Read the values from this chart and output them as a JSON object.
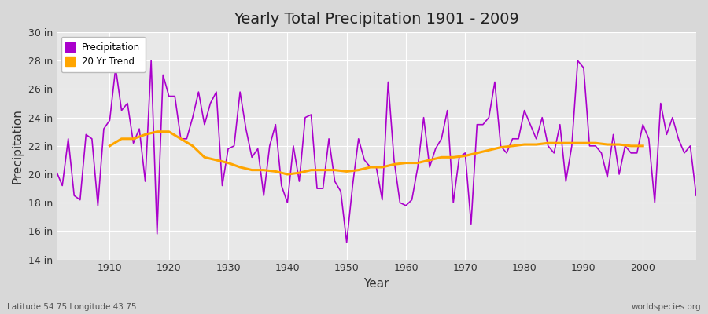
{
  "title": "Yearly Total Precipitation 1901 - 2009",
  "xlabel": "Year",
  "ylabel": "Precipitation",
  "left_label": "Latitude 54.75 Longitude 43.75",
  "right_label": "worldspecies.org",
  "years": [
    1901,
    1902,
    1903,
    1904,
    1905,
    1906,
    1907,
    1908,
    1909,
    1910,
    1911,
    1912,
    1913,
    1914,
    1915,
    1916,
    1917,
    1918,
    1919,
    1920,
    1921,
    1922,
    1923,
    1924,
    1925,
    1926,
    1927,
    1928,
    1929,
    1930,
    1931,
    1932,
    1933,
    1934,
    1935,
    1936,
    1937,
    1938,
    1939,
    1940,
    1941,
    1942,
    1943,
    1944,
    1945,
    1946,
    1947,
    1948,
    1949,
    1950,
    1951,
    1952,
    1953,
    1954,
    1955,
    1956,
    1957,
    1958,
    1959,
    1960,
    1961,
    1962,
    1963,
    1964,
    1965,
    1966,
    1967,
    1968,
    1969,
    1970,
    1971,
    1972,
    1973,
    1974,
    1975,
    1976,
    1977,
    1978,
    1979,
    1980,
    1981,
    1982,
    1983,
    1984,
    1985,
    1986,
    1987,
    1988,
    1989,
    1990,
    1991,
    1992,
    1993,
    1994,
    1995,
    1996,
    1997,
    1998,
    1999,
    2000,
    2001,
    2002,
    2003,
    2004,
    2005,
    2006,
    2007,
    2008,
    2009
  ],
  "precip": [
    20.2,
    19.2,
    22.5,
    18.5,
    18.2,
    22.8,
    22.5,
    17.8,
    23.2,
    23.8,
    27.5,
    24.5,
    25.0,
    22.2,
    23.2,
    19.5,
    28.0,
    15.8,
    27.0,
    25.5,
    25.5,
    22.5,
    22.5,
    24.0,
    25.8,
    23.5,
    25.0,
    25.8,
    19.2,
    21.8,
    22.0,
    25.8,
    23.2,
    21.2,
    21.8,
    18.5,
    22.0,
    23.5,
    19.2,
    18.0,
    22.0,
    19.5,
    24.0,
    24.2,
    19.0,
    19.0,
    22.5,
    19.5,
    18.8,
    15.2,
    19.2,
    22.5,
    21.0,
    20.5,
    20.5,
    18.2,
    26.5,
    21.0,
    18.0,
    17.8,
    18.2,
    20.5,
    24.0,
    20.5,
    21.8,
    22.5,
    24.5,
    18.0,
    21.2,
    21.5,
    16.5,
    23.5,
    23.5,
    24.0,
    26.5,
    22.0,
    21.5,
    22.5,
    22.5,
    24.5,
    23.5,
    22.5,
    24.0,
    22.0,
    21.5,
    23.5,
    19.5,
    22.0,
    28.0,
    27.5,
    22.0,
    22.0,
    21.5,
    19.8,
    22.8,
    20.0,
    22.0,
    21.5,
    21.5,
    23.5,
    22.5,
    18.0,
    25.0,
    22.8,
    24.0,
    22.5,
    21.5,
    22.0,
    18.5
  ],
  "trend_years": [
    1910,
    1912,
    1914,
    1916,
    1918,
    1920,
    1922,
    1924,
    1926,
    1928,
    1930,
    1932,
    1934,
    1936,
    1938,
    1940,
    1942,
    1944,
    1946,
    1948,
    1950,
    1952,
    1954,
    1956,
    1958,
    1960,
    1962,
    1964,
    1966,
    1968,
    1970,
    1972,
    1974,
    1976,
    1978,
    1980,
    1982,
    1984,
    1986,
    1988,
    1990,
    1992,
    1994,
    1996,
    1998,
    2000
  ],
  "trend": [
    22.0,
    22.5,
    22.5,
    22.8,
    23.0,
    23.0,
    22.5,
    22.0,
    21.2,
    21.0,
    20.8,
    20.5,
    20.3,
    20.3,
    20.2,
    20.0,
    20.1,
    20.3,
    20.3,
    20.3,
    20.2,
    20.3,
    20.5,
    20.5,
    20.7,
    20.8,
    20.8,
    21.0,
    21.2,
    21.2,
    21.3,
    21.5,
    21.7,
    21.9,
    22.0,
    22.1,
    22.1,
    22.2,
    22.2,
    22.2,
    22.2,
    22.2,
    22.1,
    22.1,
    22.0,
    22.0
  ],
  "precip_color": "#AA00CC",
  "trend_color": "#FFA500",
  "bg_color": "#D8D8D8",
  "plot_bg_color": "#E8E8E8",
  "grid_color": "#FFFFFF",
  "ylim": [
    14,
    30
  ],
  "yticks": [
    14,
    16,
    18,
    20,
    22,
    24,
    26,
    28,
    30
  ],
  "xticks": [
    1910,
    1920,
    1930,
    1940,
    1950,
    1960,
    1970,
    1980,
    1990,
    2000
  ]
}
